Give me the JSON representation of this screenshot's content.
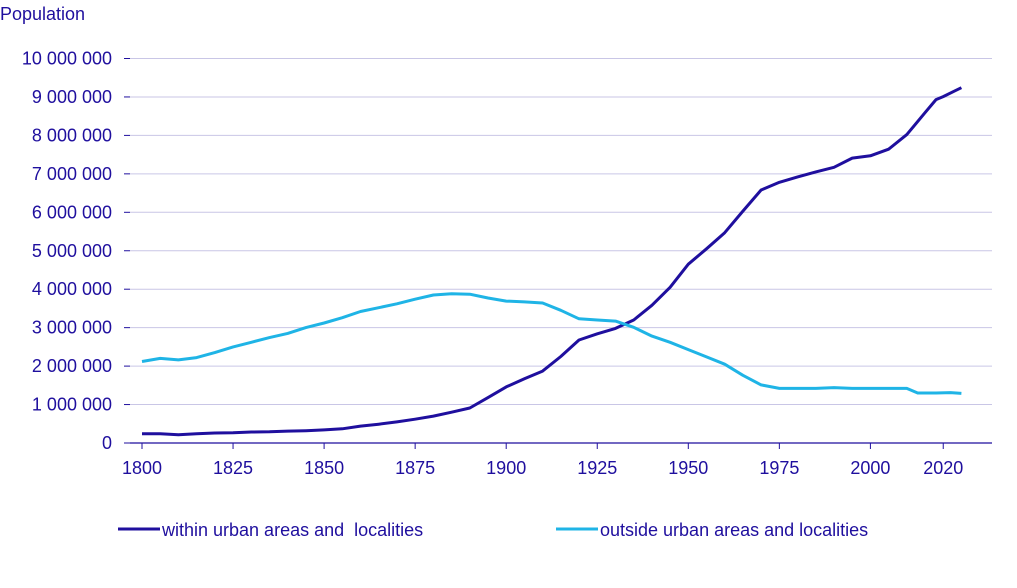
{
  "chart_data": {
    "type": "line",
    "title": "",
    "ylabel": "Population",
    "xlabel": "",
    "xlim": [
      1800,
      2025
    ],
    "ylim": [
      0,
      10000000
    ],
    "grid": true,
    "legend_position": "bottom",
    "x_ticks": [
      1800,
      1825,
      1850,
      1875,
      1900,
      1925,
      1950,
      1975,
      2000,
      2020
    ],
    "x_tick_labels": [
      "1800",
      "1825",
      "1850",
      "1875",
      "1900",
      "1925",
      "1950",
      "1975",
      "2000",
      "2020"
    ],
    "y_ticks": [
      0,
      1000000,
      2000000,
      3000000,
      4000000,
      5000000,
      6000000,
      7000000,
      8000000,
      9000000,
      10000000
    ],
    "y_tick_labels": [
      "0",
      "1 000 000",
      "2 000 000",
      "3 000 000",
      "4 000 000",
      "5 000 000",
      "6 000 000",
      "7 000 000",
      "8 000 000",
      "9 000 000",
      "10 000 000"
    ],
    "series": [
      {
        "name": "within urban areas and  localities",
        "color": "#1f0f9e",
        "points": [
          [
            1800,
            240000
          ],
          [
            1805,
            240000
          ],
          [
            1810,
            215000
          ],
          [
            1815,
            240000
          ],
          [
            1820,
            260000
          ],
          [
            1825,
            265000
          ],
          [
            1830,
            285000
          ],
          [
            1835,
            290000
          ],
          [
            1840,
            310000
          ],
          [
            1845,
            320000
          ],
          [
            1850,
            340000
          ],
          [
            1855,
            370000
          ],
          [
            1860,
            440000
          ],
          [
            1865,
            490000
          ],
          [
            1870,
            550000
          ],
          [
            1875,
            620000
          ],
          [
            1880,
            700000
          ],
          [
            1885,
            800000
          ],
          [
            1890,
            910000
          ],
          [
            1895,
            1180000
          ],
          [
            1900,
            1460000
          ],
          [
            1905,
            1670000
          ],
          [
            1910,
            1870000
          ],
          [
            1915,
            2250000
          ],
          [
            1920,
            2680000
          ],
          [
            1925,
            2840000
          ],
          [
            1930,
            2980000
          ],
          [
            1935,
            3200000
          ],
          [
            1940,
            3580000
          ],
          [
            1945,
            4050000
          ],
          [
            1950,
            4650000
          ],
          [
            1955,
            5050000
          ],
          [
            1960,
            5470000
          ],
          [
            1965,
            6030000
          ],
          [
            1970,
            6580000
          ],
          [
            1975,
            6780000
          ],
          [
            1980,
            6920000
          ],
          [
            1985,
            7050000
          ],
          [
            1990,
            7170000
          ],
          [
            1995,
            7410000
          ],
          [
            2000,
            7470000
          ],
          [
            2005,
            7640000
          ],
          [
            2010,
            8020000
          ],
          [
            2015,
            8590000
          ],
          [
            2018,
            8930000
          ],
          [
            2020,
            9010000
          ],
          [
            2023,
            9150000
          ],
          [
            2025,
            9240000
          ]
        ]
      },
      {
        "name": "outside urban areas and localities",
        "color": "#1fb4e6",
        "points": [
          [
            1800,
            2120000
          ],
          [
            1805,
            2200000
          ],
          [
            1810,
            2160000
          ],
          [
            1815,
            2220000
          ],
          [
            1820,
            2350000
          ],
          [
            1825,
            2500000
          ],
          [
            1830,
            2620000
          ],
          [
            1835,
            2740000
          ],
          [
            1840,
            2850000
          ],
          [
            1845,
            3000000
          ],
          [
            1850,
            3120000
          ],
          [
            1855,
            3260000
          ],
          [
            1860,
            3420000
          ],
          [
            1865,
            3520000
          ],
          [
            1870,
            3620000
          ],
          [
            1875,
            3740000
          ],
          [
            1880,
            3850000
          ],
          [
            1885,
            3880000
          ],
          [
            1890,
            3870000
          ],
          [
            1895,
            3770000
          ],
          [
            1900,
            3690000
          ],
          [
            1905,
            3670000
          ],
          [
            1910,
            3640000
          ],
          [
            1915,
            3450000
          ],
          [
            1920,
            3230000
          ],
          [
            1925,
            3200000
          ],
          [
            1930,
            3170000
          ],
          [
            1935,
            3010000
          ],
          [
            1940,
            2780000
          ],
          [
            1945,
            2620000
          ],
          [
            1950,
            2430000
          ],
          [
            1955,
            2240000
          ],
          [
            1960,
            2050000
          ],
          [
            1965,
            1760000
          ],
          [
            1970,
            1510000
          ],
          [
            1975,
            1420000
          ],
          [
            1980,
            1420000
          ],
          [
            1985,
            1420000
          ],
          [
            1990,
            1440000
          ],
          [
            1995,
            1420000
          ],
          [
            2000,
            1420000
          ],
          [
            2005,
            1420000
          ],
          [
            2010,
            1420000
          ],
          [
            2013,
            1300000
          ],
          [
            2018,
            1300000
          ],
          [
            2022,
            1310000
          ],
          [
            2025,
            1290000
          ]
        ]
      }
    ]
  }
}
